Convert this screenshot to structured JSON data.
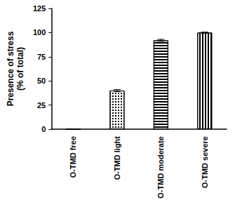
{
  "chart_data": {
    "type": "bar",
    "y_label": "Presence of stress\n(% of total)",
    "categories": [
      "O-TMD free",
      "O-TMD light",
      "O-TMD moderate",
      "O-TMD severe"
    ],
    "values": [
      0,
      40,
      92,
      100
    ],
    "errors": [
      0,
      1,
      1,
      0.5
    ],
    "color": "#000000",
    "ylim": [
      0,
      125
    ],
    "yticks": [
      0,
      25,
      50,
      75,
      100,
      125
    ],
    "grid": false
  }
}
